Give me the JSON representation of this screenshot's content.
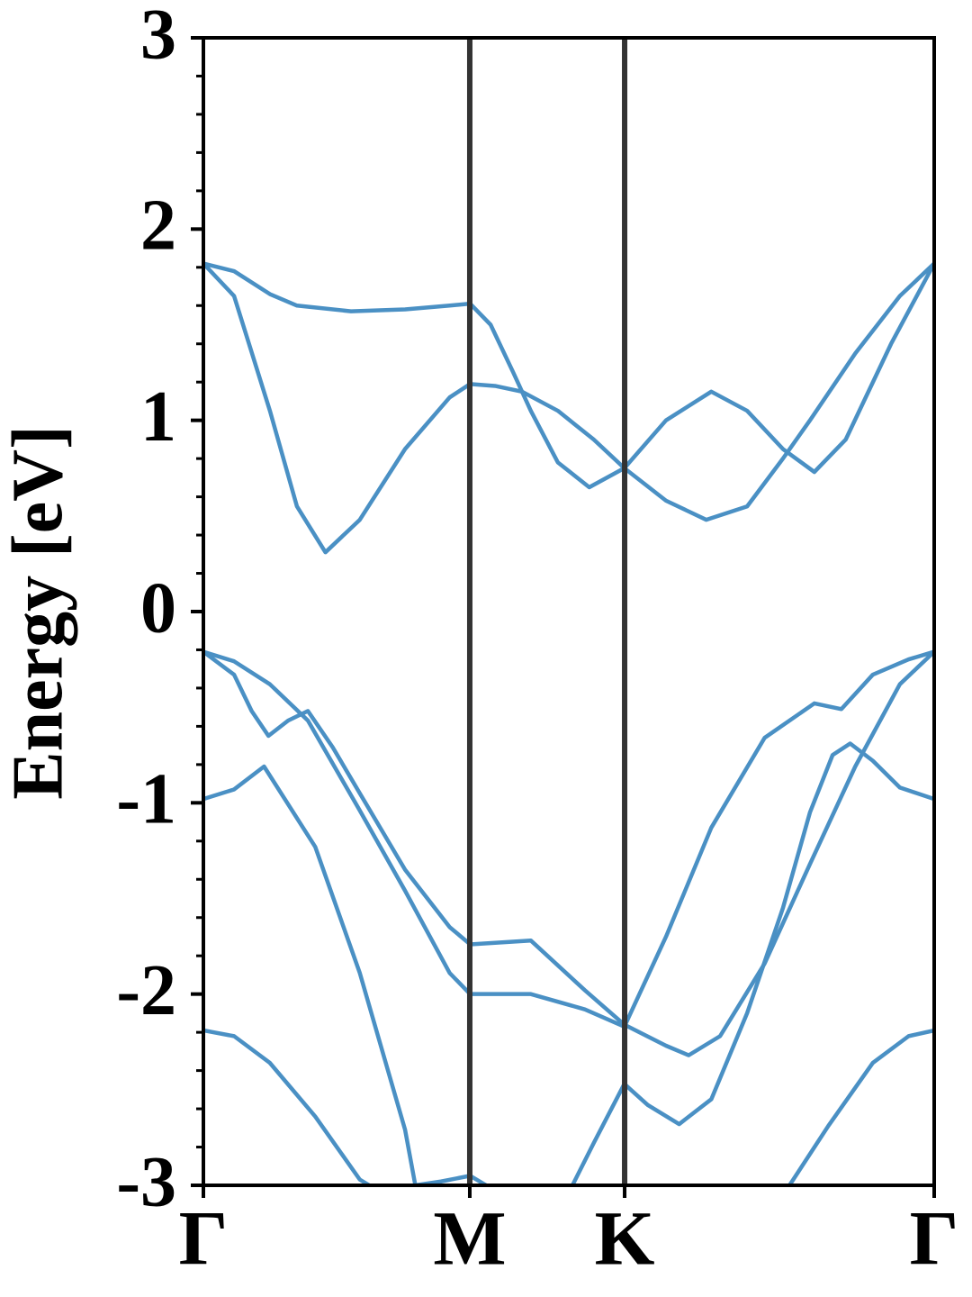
{
  "chart_data": {
    "type": "line",
    "y_label": "Energy [eV]",
    "xlim": [
      0,
      1
    ],
    "xticks": [
      {
        "value": 0,
        "label": "Γ"
      },
      {
        "value": 0.3645,
        "label": "M"
      },
      {
        "value": 0.5764,
        "label": "K"
      },
      {
        "value": 1,
        "label": "Γ"
      }
    ],
    "ylim": [
      -3,
      3
    ],
    "yticks": [
      -3,
      -2,
      -1,
      0,
      1,
      2,
      3
    ],
    "yminorticks": [
      -2.8,
      -2.6,
      -2.4,
      -2.2,
      -1.8,
      -1.6,
      -1.4,
      -1.2,
      -0.8,
      -0.6,
      -0.4,
      -0.2,
      0.2,
      0.4,
      0.6,
      0.8,
      1.2,
      1.4,
      1.6,
      1.8,
      2.2,
      2.4,
      2.6,
      2.8
    ],
    "symmetry_lines": true,
    "series": [
      {
        "color": "#4a90c4",
        "x": [
          0,
          0.042,
          0.091,
          0.128,
          0.167,
          0.214,
          0.276,
          0.337,
          0.365,
          0.399,
          0.436,
          0.485,
          0.534,
          0.576,
          0.633,
          0.688,
          0.744,
          0.793,
          0.83,
          0.892,
          0.953,
          1
        ],
        "values": [
          1.82,
          1.65,
          1.05,
          0.55,
          0.31,
          0.48,
          0.85,
          1.12,
          1.19,
          1.18,
          1.15,
          1.05,
          0.9,
          0.75,
          0.58,
          0.48,
          0.55,
          0.8,
          1.0,
          1.35,
          1.65,
          1.82
        ]
      },
      {
        "color": "#4a90c4",
        "x": [
          0,
          0.042,
          0.091,
          0.128,
          0.202,
          0.276,
          0.337,
          0.365,
          0.393,
          0.424,
          0.448,
          0.485,
          0.528,
          0.576,
          0.633,
          0.695,
          0.744,
          0.793,
          0.836,
          0.879,
          0.941,
          1
        ],
        "values": [
          1.82,
          1.78,
          1.66,
          1.6,
          1.57,
          1.58,
          1.6,
          1.61,
          1.5,
          1.25,
          1.05,
          0.78,
          0.65,
          0.75,
          1.0,
          1.15,
          1.05,
          0.85,
          0.73,
          0.9,
          1.4,
          1.82
        ]
      },
      {
        "color": "#4a90c4",
        "x": [
          0,
          0.042,
          0.066,
          0.089,
          0.116,
          0.143,
          0.177,
          0.214,
          0.276,
          0.337,
          0.365,
          0.448,
          0.522,
          0.576,
          0.633,
          0.664,
          0.707,
          0.768,
          0.83,
          0.892,
          0.953,
          1
        ],
        "values": [
          -0.21,
          -0.33,
          -0.52,
          -0.65,
          -0.57,
          -0.52,
          -0.71,
          -0.95,
          -1.35,
          -1.65,
          -1.74,
          -1.72,
          -1.98,
          -2.16,
          -2.27,
          -2.32,
          -2.22,
          -1.84,
          -1.32,
          -0.81,
          -0.38,
          -0.21
        ]
      },
      {
        "color": "#4a90c4",
        "x": [
          0,
          0.042,
          0.091,
          0.143,
          0.214,
          0.276,
          0.337,
          0.365,
          0.448,
          0.522,
          0.576,
          0.633,
          0.695,
          0.768,
          0.836,
          0.873,
          0.916,
          0.965,
          1
        ],
        "values": [
          -0.21,
          -0.26,
          -0.38,
          -0.57,
          -1.04,
          -1.46,
          -1.89,
          -2.0,
          -2.0,
          -2.08,
          -2.17,
          -1.7,
          -1.13,
          -0.66,
          -0.48,
          -0.51,
          -0.33,
          -0.25,
          -0.21
        ]
      },
      {
        "color": "#4a90c4",
        "x": [
          0,
          0.042,
          0.083,
          0.153,
          0.214,
          0.276,
          0.29,
          0.325,
          0.365,
          0.387,
          0.45,
          0.505,
          0.534,
          0.576,
          0.608,
          0.651,
          0.695,
          0.744,
          0.793,
          0.83,
          0.861,
          0.885,
          0.916,
          0.953,
          1
        ],
        "values": [
          -0.98,
          -0.93,
          -0.81,
          -1.23,
          -1.89,
          -2.71,
          -3.0,
          -2.98,
          -2.95,
          -3.0,
          null,
          -3.0,
          -2.78,
          -2.47,
          -2.58,
          -2.68,
          -2.55,
          -2.1,
          -1.55,
          -1.05,
          -0.75,
          -0.69,
          -0.78,
          -0.92,
          -0.98
        ]
      },
      {
        "color": "#4a90c4",
        "x": [
          0,
          0.042,
          0.091,
          0.153,
          0.214,
          0.227,
          0.5,
          0.802,
          0.855,
          0.916,
          0.965,
          1
        ],
        "values": [
          -2.19,
          -2.22,
          -2.36,
          -2.64,
          -2.97,
          -3.0,
          null,
          -3.0,
          -2.69,
          -2.36,
          -2.22,
          -2.19
        ]
      }
    ]
  }
}
